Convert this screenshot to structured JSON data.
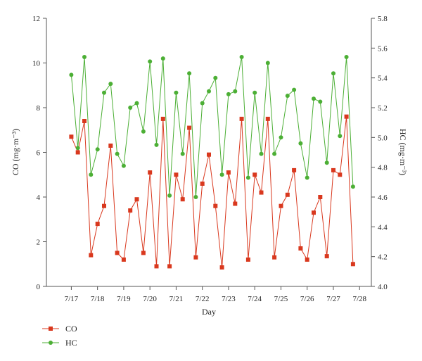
{
  "chart_data": {
    "type": "line",
    "xlabel": "Day",
    "ylabel_left": "CO (mg·m⁻³)",
    "ylabel_right": "HC (mg·m⁻³)",
    "x_ticks": [
      "7/17",
      "7/18",
      "7/19",
      "7/20",
      "7/21",
      "7/22",
      "7/23",
      "7/24",
      "7/25",
      "7/26",
      "7/27",
      "7/28"
    ],
    "xlim": [
      16.05,
      28.45
    ],
    "ylim_left": [
      0,
      12
    ],
    "ylim_right": [
      4.0,
      5.8
    ],
    "y_ticks_left": [
      "0",
      "2",
      "4",
      "6",
      "8",
      "10",
      "12"
    ],
    "y_ticks_right": [
      "4.0",
      "4.2",
      "4.4",
      "4.6",
      "4.8",
      "5.0",
      "5.2",
      "5.4",
      "5.6",
      "5.8"
    ],
    "legend_position": "bottom-left",
    "series": [
      {
        "name": "CO",
        "color": "#d9381e",
        "marker": "square",
        "axis": "left",
        "x": [
          17,
          17.25,
          17.5,
          17.75,
          18,
          18.25,
          18.5,
          18.75,
          19,
          19.25,
          19.5,
          19.75,
          20,
          20.25,
          20.5,
          20.75,
          21,
          21.25,
          21.5,
          21.75,
          22,
          22.25,
          22.5,
          22.75,
          23,
          23.25,
          23.5,
          23.75,
          24,
          24.25,
          24.5,
          24.75,
          25,
          25.25,
          25.5,
          25.75,
          26,
          26.25,
          26.5,
          26.75,
          27,
          27.25,
          27.5,
          27.75
        ],
        "values": [
          6.7,
          6.0,
          7.4,
          1.4,
          2.8,
          3.6,
          6.3,
          1.5,
          1.2,
          3.4,
          3.9,
          1.5,
          5.1,
          0.9,
          7.5,
          0.9,
          5.0,
          3.9,
          7.1,
          1.3,
          4.6,
          5.9,
          3.6,
          0.85,
          5.1,
          3.7,
          7.5,
          1.2,
          5.0,
          4.2,
          7.5,
          1.3,
          3.6,
          4.1,
          5.2,
          1.7,
          1.2,
          3.3,
          4.0,
          1.35,
          5.2,
          5.0,
          7.6,
          1.0
        ]
      },
      {
        "name": "HC",
        "color": "#4caf35",
        "marker": "circle",
        "axis": "right",
        "x": [
          17,
          17.25,
          17.5,
          17.75,
          18,
          18.25,
          18.5,
          18.75,
          19,
          19.25,
          19.5,
          19.75,
          20,
          20.25,
          20.5,
          20.75,
          21,
          21.25,
          21.5,
          21.75,
          22,
          22.25,
          22.5,
          22.75,
          23,
          23.25,
          23.5,
          23.75,
          24,
          24.25,
          24.5,
          24.75,
          25,
          25.25,
          25.5,
          25.75,
          26,
          26.25,
          26.5,
          26.75,
          27,
          27.25,
          27.5,
          27.75
        ],
        "values": [
          5.42,
          4.93,
          5.54,
          4.75,
          4.92,
          5.3,
          5.36,
          4.89,
          4.81,
          5.2,
          5.23,
          5.04,
          5.51,
          4.95,
          5.53,
          4.61,
          5.3,
          4.89,
          5.43,
          4.6,
          5.23,
          5.31,
          5.4,
          4.75,
          5.29,
          5.31,
          5.54,
          4.73,
          5.3,
          4.89,
          5.5,
          4.89,
          5.0,
          5.28,
          5.32,
          4.96,
          4.73,
          5.26,
          5.24,
          4.83,
          5.43,
          5.01,
          5.54,
          4.67
        ]
      }
    ]
  }
}
